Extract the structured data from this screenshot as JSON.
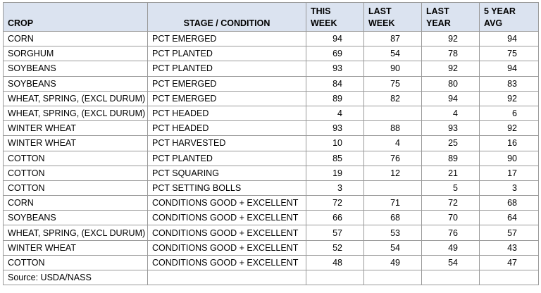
{
  "table": {
    "headers": {
      "crop": "CROP",
      "stage": "STAGE  /  CONDITION",
      "this_week": [
        "THIS",
        "WEEK"
      ],
      "last_week": [
        "LAST",
        "WEEK"
      ],
      "last_year": [
        "LAST",
        "YEAR"
      ],
      "five_year_avg": [
        "5 YEAR",
        "AVG"
      ]
    },
    "rows": [
      {
        "crop": "CORN",
        "stage": "PCT EMERGED",
        "this_week": "94",
        "last_week": "87",
        "last_year": "92",
        "avg": "94"
      },
      {
        "crop": "SORGHUM",
        "stage": "PCT PLANTED",
        "this_week": "69",
        "last_week": "54",
        "last_year": "78",
        "avg": "75"
      },
      {
        "crop": "SOYBEANS",
        "stage": "PCT PLANTED",
        "this_week": "93",
        "last_week": "90",
        "last_year": "92",
        "avg": "94"
      },
      {
        "crop": "SOYBEANS",
        "stage": "PCT EMERGED",
        "this_week": "84",
        "last_week": "75",
        "last_year": "80",
        "avg": "83"
      },
      {
        "crop": "WHEAT, SPRING, (EXCL DURUM)",
        "stage": "PCT EMERGED",
        "this_week": "89",
        "last_week": "82",
        "last_year": "94",
        "avg": "92"
      },
      {
        "crop": "WHEAT, SPRING, (EXCL DURUM)",
        "stage": "PCT HEADED",
        "this_week": "4",
        "last_week": "",
        "last_year": "4",
        "avg": "6"
      },
      {
        "crop": "WINTER WHEAT",
        "stage": "PCT HEADED",
        "this_week": "93",
        "last_week": "88",
        "last_year": "93",
        "avg": "92"
      },
      {
        "crop": "WINTER WHEAT",
        "stage": "PCT HARVESTED",
        "this_week": "10",
        "last_week": "4",
        "last_year": "25",
        "avg": "16"
      },
      {
        "crop": "COTTON",
        "stage": "PCT PLANTED",
        "this_week": "85",
        "last_week": "76",
        "last_year": "89",
        "avg": "90"
      },
      {
        "crop": "COTTON",
        "stage": "PCT SQUARING",
        "this_week": "19",
        "last_week": "12",
        "last_year": "21",
        "avg": "17"
      },
      {
        "crop": "COTTON",
        "stage": "PCT SETTING BOLLS",
        "this_week": "3",
        "last_week": "",
        "last_year": "5",
        "avg": "3"
      },
      {
        "crop": "CORN",
        "stage": "CONDITIONS GOOD + EXCELLENT",
        "this_week": "72",
        "last_week": "71",
        "last_year": "72",
        "avg": "68"
      },
      {
        "crop": "SOYBEANS",
        "stage": "CONDITIONS GOOD + EXCELLENT",
        "this_week": "66",
        "last_week": "68",
        "last_year": "70",
        "avg": "64"
      },
      {
        "crop": "WHEAT, SPRING, (EXCL DURUM)",
        "stage": "CONDITIONS GOOD + EXCELLENT",
        "this_week": "57",
        "last_week": "53",
        "last_year": "76",
        "avg": "57"
      },
      {
        "crop": "WINTER WHEAT",
        "stage": "CONDITIONS GOOD + EXCELLENT",
        "this_week": "52",
        "last_week": "54",
        "last_year": "49",
        "avg": "43"
      },
      {
        "crop": "COTTON",
        "stage": "CONDITIONS GOOD + EXCELLENT",
        "this_week": "48",
        "last_week": "49",
        "last_year": "54",
        "avg": "47"
      }
    ],
    "source": "Source: USDA/NASS"
  },
  "colors": {
    "header_bg": "#dbe3f0",
    "grid": "#9a9a9a"
  }
}
